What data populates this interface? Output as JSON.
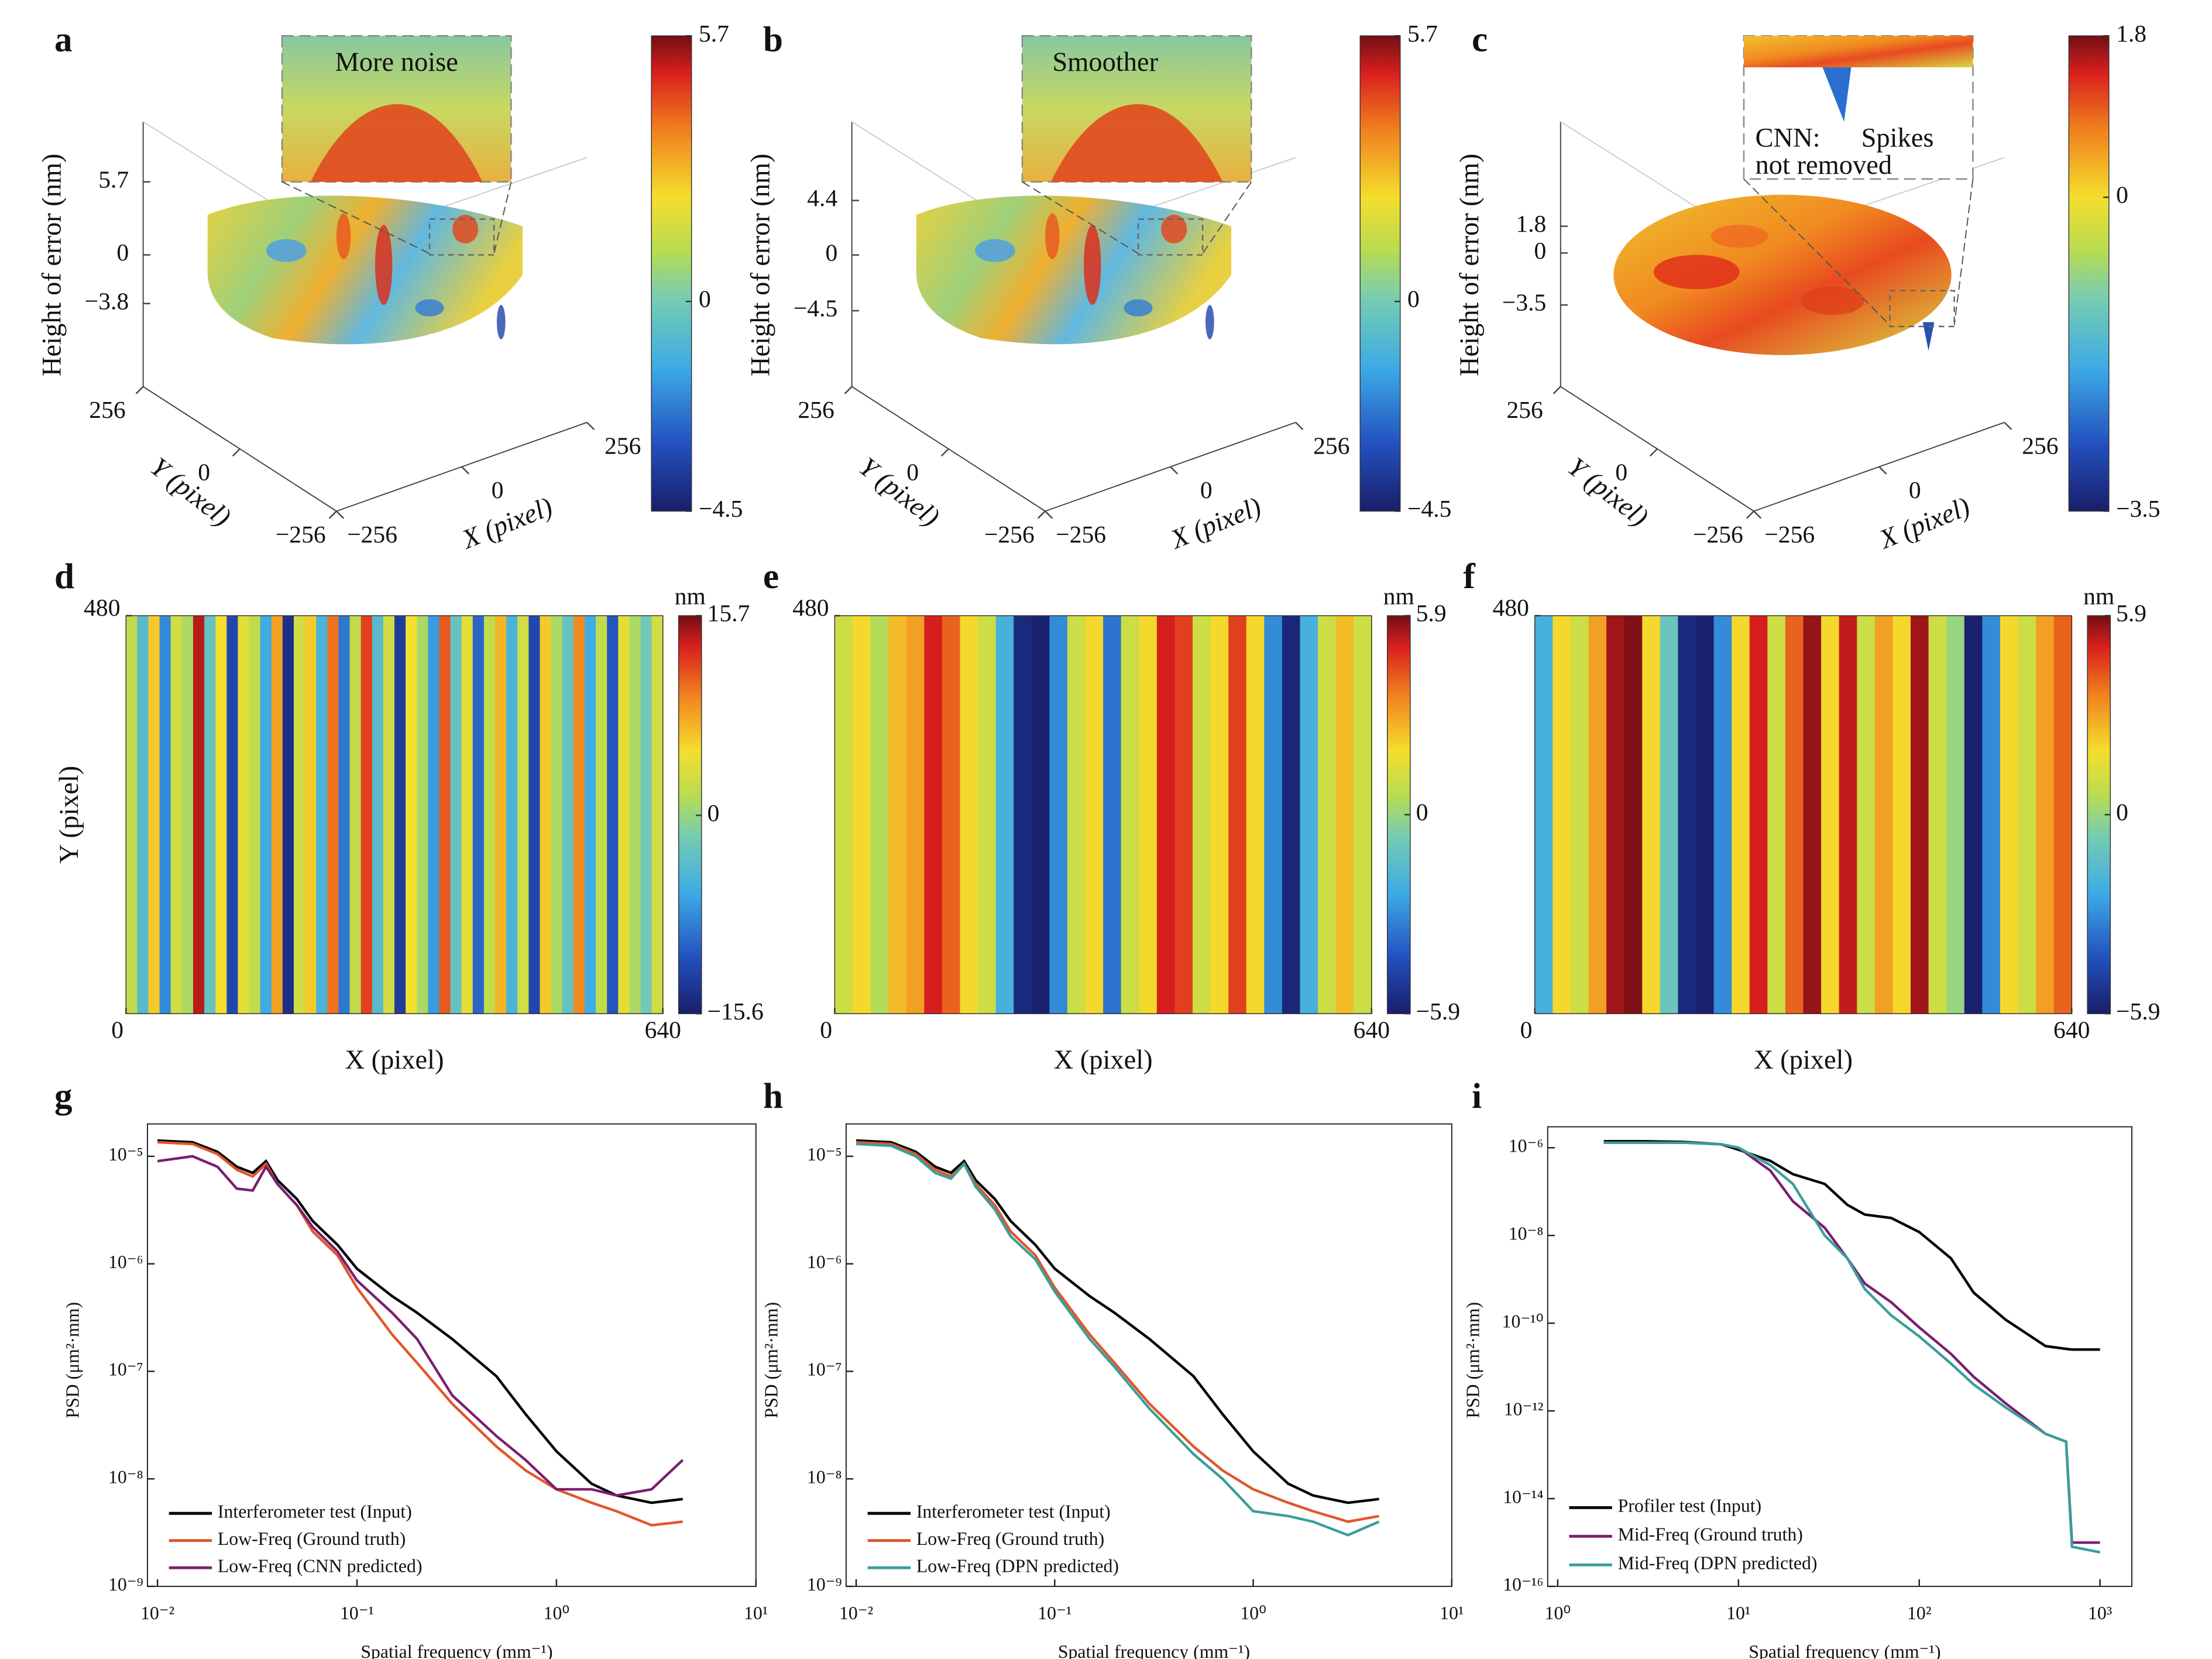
{
  "chart_data": [
    {
      "type": "surface",
      "label": "a",
      "zlabel": "Height of error (nm)",
      "xlabel": "X (pixel)",
      "ylabel": "Y (pixel)",
      "zticks": [
        5.7,
        0,
        {
          "value": -3.8,
          "label": "−3.8"
        }
      ],
      "xticks": [
        {
          "value": -256,
          "label": "−256"
        },
        0,
        256
      ],
      "yticks": [
        {
          "value": -256,
          "label": "−256"
        },
        0,
        256
      ],
      "annotation": [
        "More noise"
      ],
      "colorbar": {
        "lim": [
          -4.5,
          5.7
        ],
        "ticks": [
          5.7,
          0,
          {
            "value": -4.5,
            "label": "−4.5"
          }
        ]
      }
    },
    {
      "type": "surface",
      "label": "b",
      "zlabel": "Height of error (nm)",
      "xlabel": "X (pixel)",
      "ylabel": "Y (pixel)",
      "zticks": [
        4.4,
        0,
        {
          "value": -4.5,
          "label": "−4.5"
        }
      ],
      "xticks": [
        {
          "value": -256,
          "label": "−256"
        },
        0,
        256
      ],
      "yticks": [
        {
          "value": -256,
          "label": "−256"
        },
        0,
        256
      ],
      "annotation": [
        "Smoother"
      ],
      "colorbar": {
        "lim": [
          -4.5,
          5.7
        ],
        "ticks": [
          5.7,
          0,
          {
            "value": -4.5,
            "label": "−4.5"
          }
        ]
      }
    },
    {
      "type": "surface",
      "label": "c",
      "zlabel": "Height of error (nm)",
      "xlabel": "X (pixel)",
      "ylabel": "Y (pixel)",
      "zticks": [
        1.8,
        0,
        {
          "value": -3.5,
          "label": "−3.5"
        }
      ],
      "xticks": [
        {
          "value": -256,
          "label": "−256"
        },
        0,
        256
      ],
      "yticks": [
        {
          "value": -256,
          "label": "−256"
        },
        0,
        256
      ],
      "annotation": [
        "CNN:",
        "Spikes",
        "not removed"
      ],
      "colorbar": {
        "lim": [
          -3.5,
          1.8
        ],
        "ticks": [
          1.8,
          0,
          {
            "value": -3.5,
            "label": "−3.5"
          }
        ]
      }
    },
    {
      "type": "heatmap",
      "label": "d",
      "xlabel": "X (pixel)",
      "ylabel": "Y (pixel)",
      "xlim": [
        0,
        640
      ],
      "ylim": [
        0,
        480
      ],
      "xticks": [
        0,
        640
      ],
      "yticks": [
        480
      ],
      "values": [
        2,
        -4,
        6,
        -8,
        3,
        1,
        14,
        -3,
        5,
        -12,
        4,
        2,
        -6,
        8,
        -14,
        3,
        6,
        -5,
        10,
        -9,
        2,
        12,
        -4,
        3,
        -13,
        5,
        1,
        -7,
        11,
        -3,
        4,
        -10,
        2,
        7,
        -5,
        3,
        -12,
        6,
        1,
        -3,
        9,
        -6,
        2,
        -11,
        4,
        1,
        -2,
        3
      ],
      "colorbar": {
        "unit": "nm",
        "lim": [
          -15.6,
          15.7
        ],
        "ticks": [
          15.7,
          0,
          {
            "value": -15.6,
            "label": "−15.6"
          }
        ]
      }
    },
    {
      "type": "heatmap",
      "label": "e",
      "xlabel": "X (pixel)",
      "xlim": [
        0,
        640
      ],
      "ylim": [
        0,
        480
      ],
      "xticks": [
        0,
        640
      ],
      "yticks": [
        480
      ],
      "values": [
        1,
        2,
        0.5,
        2.5,
        3,
        5,
        4,
        2,
        1,
        -2,
        -5.5,
        -5.8,
        -3,
        1,
        2,
        -3.5,
        1,
        2,
        5,
        4.5,
        1,
        2,
        4.5,
        2,
        -3,
        -5.6,
        -2,
        1,
        2.5,
        1
      ],
      "colorbar": {
        "unit": "nm",
        "lim": [
          -5.9,
          5.9
        ],
        "ticks": [
          5.9,
          0,
          {
            "value": -5.9,
            "label": "−5.9"
          }
        ]
      }
    },
    {
      "type": "heatmap",
      "label": "f",
      "xlabel": "X (pixel)",
      "xlim": [
        0,
        640
      ],
      "ylim": [
        0,
        480
      ],
      "xticks": [
        0,
        640
      ],
      "yticks": [
        480
      ],
      "values": [
        -2,
        2,
        1,
        3,
        5.5,
        5.8,
        2,
        -1,
        -5.5,
        -5.8,
        -3,
        2,
        5,
        1,
        4,
        5.6,
        2,
        5.2,
        1,
        3,
        2,
        5.5,
        1,
        0,
        -5.8,
        -3,
        2,
        1,
        3,
        4
      ],
      "colorbar": {
        "unit": "nm",
        "lim": [
          -5.9,
          5.9
        ],
        "ticks": [
          5.9,
          0,
          {
            "value": -5.9,
            "label": "−5.9"
          }
        ]
      }
    },
    {
      "type": "line",
      "label": "g",
      "log_x": true,
      "log_y": true,
      "legend": "lower left",
      "xlabel": "Spatial frequency (mm⁻¹)",
      "ylabel": "PSD (μm²·mm)",
      "xlim": [
        0.01,
        10
      ],
      "ylim": [
        1e-09,
        2e-05
      ],
      "xticks": [
        {
          "value": 0.01,
          "label": "10⁻²"
        },
        {
          "value": 0.1,
          "label": "10⁻¹"
        },
        {
          "value": 1,
          "label": "10⁰"
        },
        {
          "value": 10,
          "label": "10¹"
        }
      ],
      "yticks": [
        {
          "value": 1e-09,
          "label": "10⁻⁹"
        },
        {
          "value": 1e-08,
          "label": "10⁻⁸"
        },
        {
          "value": 1e-07,
          "label": "10⁻⁷"
        },
        {
          "value": 1e-06,
          "label": "10⁻⁶"
        },
        {
          "value": 1e-05,
          "label": "10⁻⁵"
        }
      ],
      "x": [
        0.01,
        0.015,
        0.02,
        0.025,
        0.03,
        0.035,
        0.04,
        0.05,
        0.06,
        0.08,
        0.1,
        0.15,
        0.2,
        0.3,
        0.5,
        0.7,
        1,
        1.5,
        2,
        3,
        4.3
      ],
      "series": [
        {
          "name": "Interferometer test (Input)",
          "color": "#000000",
          "values": [
            1.4e-05,
            1.35e-05,
            1.1e-05,
            8e-06,
            7e-06,
            9e-06,
            6e-06,
            4e-06,
            2.5e-06,
            1.5e-06,
            9e-07,
            5e-07,
            3.5e-07,
            2e-07,
            9e-08,
            4e-08,
            1.8e-08,
            9e-09,
            7e-09,
            6e-09,
            6.5e-09
          ]
        },
        {
          "name": "Low-Freq (Ground truth)",
          "color": "#e0562a",
          "values": [
            1.35e-05,
            1.3e-05,
            1.05e-05,
            7.5e-06,
            6.5e-06,
            8.5e-06,
            5.5e-06,
            3.5e-06,
            2e-06,
            1.2e-06,
            6e-07,
            2.2e-07,
            1.2e-07,
            5e-08,
            2e-08,
            1.2e-08,
            8e-09,
            6e-09,
            5e-09,
            3.7e-09,
            4e-09
          ]
        },
        {
          "name": "Low-Freq (CNN predicted)",
          "color": "#7a1f6e",
          "values": [
            9e-06,
            1e-05,
            8e-06,
            5e-06,
            4.8e-06,
            8e-06,
            5.5e-06,
            3.5e-06,
            2.2e-06,
            1.3e-06,
            7e-07,
            3.5e-07,
            2e-07,
            6e-08,
            2.5e-08,
            1.5e-08,
            8e-09,
            8e-09,
            7e-09,
            8e-09,
            1.5e-08
          ]
        }
      ]
    },
    {
      "type": "line",
      "label": "h",
      "log_x": true,
      "log_y": true,
      "legend": "lower left",
      "xlabel": "Spatial frequency (mm⁻¹)",
      "ylabel": "PSD (μm²·mm)",
      "xlim": [
        0.01,
        10
      ],
      "ylim": [
        1e-09,
        2e-05
      ],
      "xticks": [
        {
          "value": 0.01,
          "label": "10⁻²"
        },
        {
          "value": 0.1,
          "label": "10⁻¹"
        },
        {
          "value": 1,
          "label": "10⁰"
        },
        {
          "value": 10,
          "label": "10¹"
        }
      ],
      "yticks": [
        {
          "value": 1e-09,
          "label": "10⁻⁹"
        },
        {
          "value": 1e-08,
          "label": "10⁻⁸"
        },
        {
          "value": 1e-07,
          "label": "10⁻⁷"
        },
        {
          "value": 1e-06,
          "label": "10⁻⁶"
        },
        {
          "value": 1e-05,
          "label": "10⁻⁵"
        }
      ],
      "x": [
        0.01,
        0.015,
        0.02,
        0.025,
        0.03,
        0.035,
        0.04,
        0.05,
        0.06,
        0.08,
        0.1,
        0.15,
        0.2,
        0.3,
        0.5,
        0.7,
        1,
        1.5,
        2,
        3,
        4.3
      ],
      "series": [
        {
          "name": "Interferometer test (Input)",
          "color": "#000000",
          "values": [
            1.4e-05,
            1.35e-05,
            1.1e-05,
            8e-06,
            7e-06,
            9e-06,
            6e-06,
            4e-06,
            2.5e-06,
            1.5e-06,
            9e-07,
            5e-07,
            3.5e-07,
            2e-07,
            9e-08,
            4e-08,
            1.8e-08,
            9e-09,
            7e-09,
            6e-09,
            6.5e-09
          ]
        },
        {
          "name": "Low-Freq (Ground truth)",
          "color": "#e0562a",
          "values": [
            1.35e-05,
            1.3e-05,
            1.05e-05,
            7.5e-06,
            6.5e-06,
            8.5e-06,
            5.5e-06,
            3.5e-06,
            2e-06,
            1.2e-06,
            6e-07,
            2.2e-07,
            1.2e-07,
            5e-08,
            2e-08,
            1.2e-08,
            8e-09,
            6e-09,
            5e-09,
            4e-09,
            4.5e-09
          ]
        },
        {
          "name": "Low-Freq (DPN predicted)",
          "color": "#3a9e9a",
          "values": [
            1.3e-05,
            1.25e-05,
            1e-05,
            7e-06,
            6.2e-06,
            8.5e-06,
            5.2e-06,
            3.2e-06,
            1.8e-06,
            1.1e-06,
            5.5e-07,
            2e-07,
            1.1e-07,
            4.5e-08,
            1.7e-08,
            1e-08,
            5e-09,
            4.5e-09,
            4e-09,
            3e-09,
            4e-09
          ]
        }
      ]
    },
    {
      "type": "line",
      "label": "i",
      "log_x": true,
      "log_y": true,
      "legend": "lower left",
      "xlabel": "Spatial frequency (mm⁻¹)",
      "ylabel": "PSD (μm²·mm)",
      "xlim": [
        1,
        1500
      ],
      "ylim": [
        1e-16,
        3e-06
      ],
      "xticks": [
        {
          "value": 1,
          "label": "10⁰"
        },
        {
          "value": 10,
          "label": "10¹"
        },
        {
          "value": 100,
          "label": "10²"
        },
        {
          "value": 1000,
          "label": "10³"
        }
      ],
      "yticks": [
        {
          "value": 1e-16,
          "label": "10⁻¹⁶"
        },
        {
          "value": 1e-14,
          "label": "10⁻¹⁴"
        },
        {
          "value": 1e-12,
          "label": "10⁻¹²"
        },
        {
          "value": 1e-10,
          "label": "10⁻¹⁰"
        },
        {
          "value": 1e-08,
          "label": "10⁻⁸"
        },
        {
          "value": 1e-06,
          "label": "10⁻⁶"
        }
      ],
      "x": [
        1.8,
        3,
        5,
        8,
        10,
        15,
        20,
        30,
        40,
        50,
        70,
        100,
        150,
        200,
        300,
        500,
        650,
        700,
        1000
      ],
      "series": [
        {
          "name": "Profiler test (Input)",
          "color": "#000000",
          "values": [
            1.4e-06,
            1.4e-06,
            1.35e-06,
            1.2e-06,
            9e-07,
            5e-07,
            2.5e-07,
            1.5e-07,
            5e-08,
            3e-08,
            2.5e-08,
            1.2e-08,
            3e-09,
            5e-10,
            1.2e-10,
            3e-11,
            2.6e-11,
            2.5e-11,
            2.5e-11
          ]
        },
        {
          "name": "Mid-Freq (Ground truth)",
          "color": "#7a1f6e",
          "values": [
            1.3e-06,
            1.3e-06,
            1.3e-06,
            1.2e-06,
            1e-06,
            3e-07,
            6e-08,
            1.5e-08,
            3e-09,
            8e-10,
            3e-10,
            8e-11,
            2e-11,
            6e-12,
            1.5e-12,
            3e-13,
            2e-13,
            1e-15,
            1e-15
          ]
        },
        {
          "name": "Mid-Freq (DPN predicted)",
          "color": "#3a9e9a",
          "values": [
            1.3e-06,
            1.3e-06,
            1.3e-06,
            1.2e-06,
            1e-06,
            4e-07,
            1.5e-07,
            1e-08,
            3e-09,
            6e-10,
            1.5e-10,
            5e-11,
            1.2e-11,
            4e-12,
            1.2e-12,
            3e-13,
            2e-13,
            8e-16,
            6e-16
          ]
        }
      ]
    }
  ]
}
